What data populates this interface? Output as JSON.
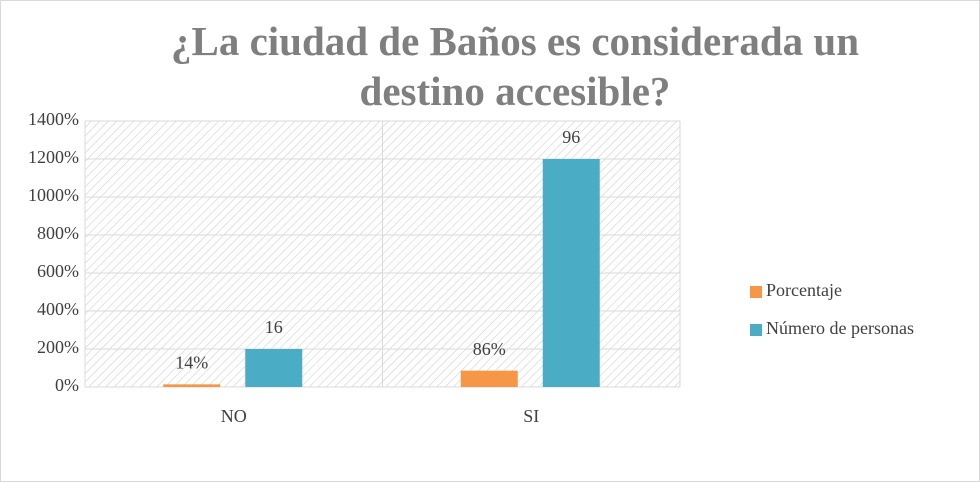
{
  "chart_data": {
    "type": "bar",
    "title": "¿La ciudad de Baños es considerada un destino accesible?",
    "categories": [
      "NO",
      "SI"
    ],
    "series": [
      {
        "name": "Porcentaje",
        "color": "#f79646",
        "values": [
          14,
          86
        ],
        "value_labels": [
          "14%",
          "86%"
        ]
      },
      {
        "name": "Número de personas",
        "color": "#4bacc6",
        "values": [
          16,
          96
        ],
        "axis": "y2"
      }
    ],
    "ylim": [
      0,
      1400
    ],
    "yticks": [
      {
        "value": 0,
        "label": "0%"
      },
      {
        "value": 200,
        "label": "200%"
      },
      {
        "value": 400,
        "label": "400%"
      },
      {
        "value": 600,
        "label": "600%"
      },
      {
        "value": 800,
        "label": "800%"
      },
      {
        "value": 1000,
        "label": "1000%"
      },
      {
        "value": 1200,
        "label": "1200%"
      },
      {
        "value": 1400,
        "label": "1400%"
      }
    ],
    "y2lim": [
      0,
      112
    ],
    "grid": true,
    "legend": "right"
  }
}
